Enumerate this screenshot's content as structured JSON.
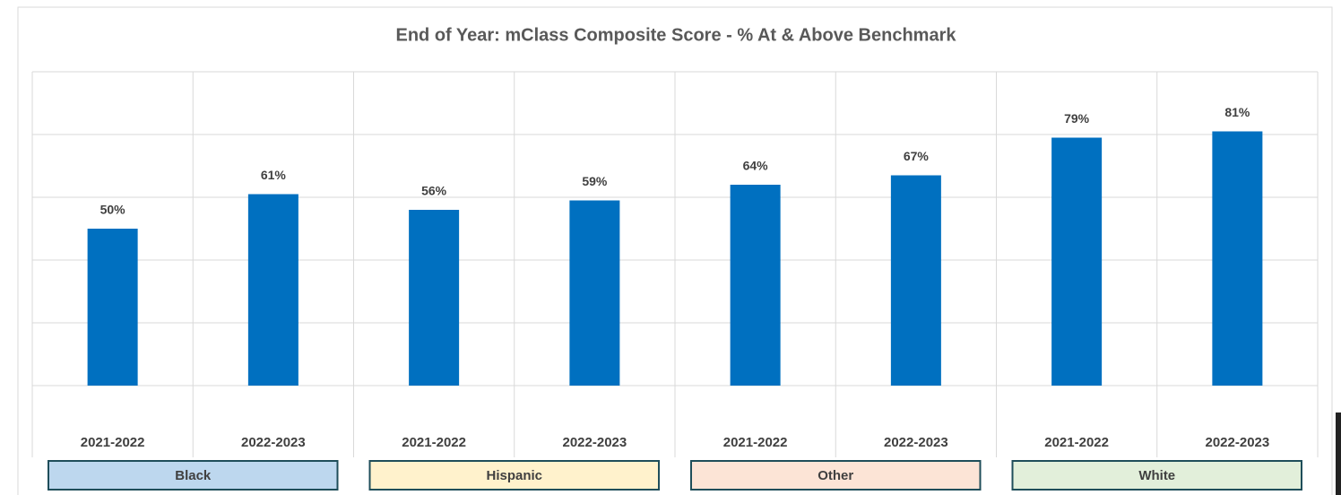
{
  "chart_data": {
    "type": "bar",
    "title": "End of Year:  mClass Composite Score - %  At & Above Benchmark",
    "categories": [
      "2021-2022",
      "2022-2023",
      "2021-2022",
      "2022-2023",
      "2021-2022",
      "2022-2023",
      "2021-2022",
      "2022-2023"
    ],
    "values": [
      50,
      61,
      56,
      59,
      64,
      67,
      79,
      81
    ],
    "value_labels": [
      "50%",
      "61%",
      "56%",
      "59%",
      "64%",
      "67%",
      "79%",
      "81%"
    ],
    "color": "#0070c0",
    "groups": [
      {
        "name": "Black",
        "color": "#bdd7ee"
      },
      {
        "name": "Hispanic",
        "color": "#fff2cc"
      },
      {
        "name": "Other",
        "color": "#fce4d6"
      },
      {
        "name": "White",
        "color": "#e2efda"
      }
    ],
    "ylim": [
      0,
      100
    ],
    "yticks": [
      0,
      20,
      40,
      60,
      80,
      100
    ],
    "grid": true
  }
}
